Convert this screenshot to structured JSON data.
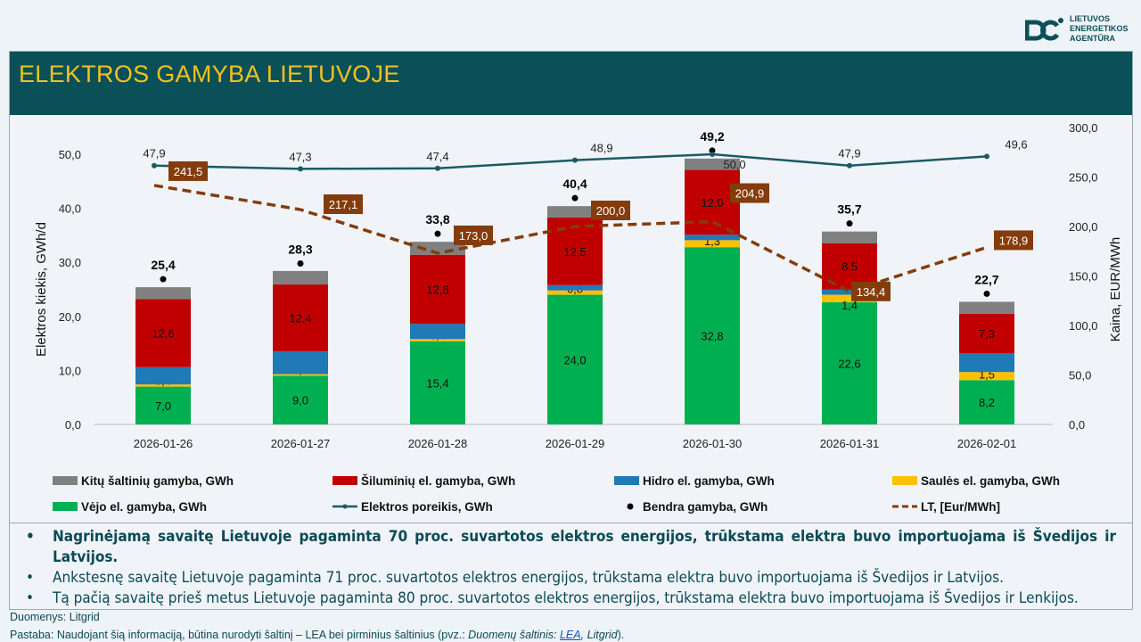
{
  "logo": {
    "lines": [
      "LIETUVOS",
      "ENERGETIKOS",
      "AGENTŪRA"
    ]
  },
  "title": "ELEKTROS GAMYBA LIETUVOJE",
  "colors": {
    "wind": "#00b050",
    "solar": "#ffc000",
    "hydro": "#1f7ab5",
    "thermal": "#c00000",
    "other": "#808080",
    "demand": "#1b5b63",
    "price": "#843c0c",
    "title_bg": "#0b5059",
    "title_text": "#f2c21b"
  },
  "chart_data": {
    "type": "bar",
    "stacked": true,
    "categories": [
      "2026-01-26",
      "2026-01-27",
      "2026-01-28",
      "2026-01-29",
      "2026-01-30",
      "2026-01-31",
      "2026-02-01"
    ],
    "ylabel": "Elektros kiekis, GWh/d",
    "y2label": "Kaina, EUR/MWh",
    "ylim": [
      0,
      50
    ],
    "y2lim": [
      0,
      300
    ],
    "yticks": [
      "0,0",
      "10,0",
      "20,0",
      "30,0",
      "40,0",
      "50,0"
    ],
    "y2ticks": [
      "0,0",
      "50,0",
      "100,0",
      "150,0",
      "200,0",
      "250,0",
      "300,0"
    ],
    "series": [
      {
        "name": "Vėjo el. gamyba, GWh",
        "key": "wind",
        "values": [
          7.0,
          9.0,
          15.4,
          24.0,
          32.8,
          22.6,
          8.2
        ],
        "labels": [
          "7,0",
          "9,0",
          "15,4",
          "24,0",
          "32,8",
          "22,6",
          "8,2"
        ]
      },
      {
        "name": "Saulės el. gamyba, GWh",
        "key": "solar",
        "values": [
          0.4,
          0.3,
          0.4,
          0.8,
          1.3,
          1.4,
          1.5
        ],
        "labels": [
          "0,4",
          "0,3",
          "0,4",
          "0,8",
          "1,3",
          "1,4",
          "1,5"
        ]
      },
      {
        "name": "Hidro el. gamyba, GWh",
        "key": "hydro",
        "values": [
          3.2,
          4.2,
          2.8,
          1.0,
          1.0,
          1.0,
          3.5
        ]
      },
      {
        "name": "Šiluminių el. gamyba, GWh",
        "key": "thermal",
        "values": [
          12.6,
          12.4,
          12.8,
          12.5,
          12.0,
          8.5,
          7.3
        ],
        "labels": [
          "12,6",
          "12,4",
          "12,8",
          "12,5",
          "12,0",
          "8,5",
          "7,3"
        ]
      },
      {
        "name": "Kitų šaltinių gamyba,  GWh",
        "key": "other",
        "values": [
          2.2,
          2.5,
          2.4,
          2.1,
          2.1,
          2.2,
          2.2
        ]
      }
    ],
    "total": {
      "name": "Bendra gamyba, GWh",
      "values": [
        25.4,
        28.3,
        33.8,
        40.4,
        49.2,
        35.7,
        22.7
      ],
      "labels": [
        "25,4",
        "28,3",
        "33,8",
        "40,4",
        "49,2",
        "35,7",
        "22,7"
      ]
    },
    "demand": {
      "name": "Elektros poreikis, GWh",
      "type": "line",
      "values": [
        47.9,
        47.3,
        47.4,
        48.9,
        50.0,
        47.9,
        49.6
      ],
      "labels": [
        "47,9",
        "47,3",
        "47,4",
        "48,9",
        "50,0",
        "47,9",
        "49,6"
      ]
    },
    "price": {
      "name": "LT, [Eur/MWh]",
      "type": "line",
      "axis": "right",
      "style": "dashed",
      "values": [
        241.5,
        217.1,
        173.0,
        200.0,
        204.9,
        134.4,
        178.9
      ],
      "labels": [
        "241,5",
        "217,1",
        "173,0",
        "200,0",
        "204,9",
        "134,4",
        "178,9"
      ]
    },
    "legend_order": [
      "other",
      "thermal",
      "hydro",
      "solar",
      "wind",
      "demand",
      "total",
      "price"
    ],
    "legend": "bottom"
  },
  "bullets": [
    "Nagrinėjamą savaitę Lietuvoje pagaminta 70 proc. suvartotos elektros energijos, trūkstama elektra buvo importuojama iš Švedijos ir Latvijos.",
    "Ankstesnę savaitę Lietuvoje pagaminta 71 proc. suvartotos elektros energijos, trūkstama elektra buvo importuojama iš Švedijos ir Latvijos.",
    "Tą pačią savaitę prieš metus Lietuvoje pagaminta 80 proc. suvartotos elektros energijos, trūkstama elektra buvo importuojama iš Švedijos ir Lenkijos."
  ],
  "footer": {
    "source": "Duomenys: Litgrid",
    "note_prefix": "Pastaba: Naudojant šią informaciją, būtina nurodyti šaltinį – LEA bei pirminius šaltinius (pvz.: ",
    "note_italic": "Duomenų šaltinis: ",
    "note_link": "LEA",
    "note_sep": ", Litgrid",
    "note_suffix": ")."
  }
}
